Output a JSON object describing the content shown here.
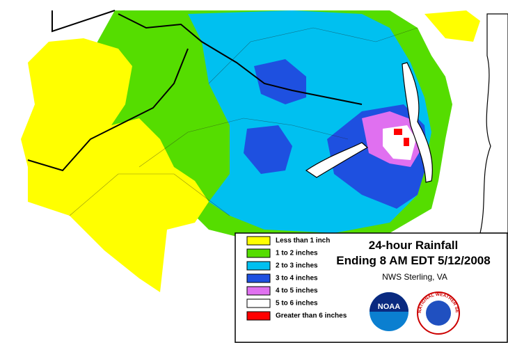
{
  "legend": {
    "title": "24-hour Rainfall",
    "subtitle": "Ending 8 AM EDT 5/12/2008",
    "office": "NWS Sterling, VA",
    "items": [
      {
        "label": "Less than 1 inch",
        "color": "#ffff00"
      },
      {
        "label": "1 to 2 inches",
        "color": "#55dd00"
      },
      {
        "label": "2 to 3 inches",
        "color": "#00c0f0"
      },
      {
        "label": "3 to 4 inches",
        "color": "#1e50e0"
      },
      {
        "label": "4 to 5 inches",
        "color": "#e070f0"
      },
      {
        "label": "5 to 6 inches",
        "color": "#ffffff"
      },
      {
        "label": "Greater than 6 inches",
        "color": "#ff0000"
      }
    ]
  },
  "logos": {
    "noaa": "NOAA",
    "nws": "NATIONAL WEATHER SERVICE"
  }
}
